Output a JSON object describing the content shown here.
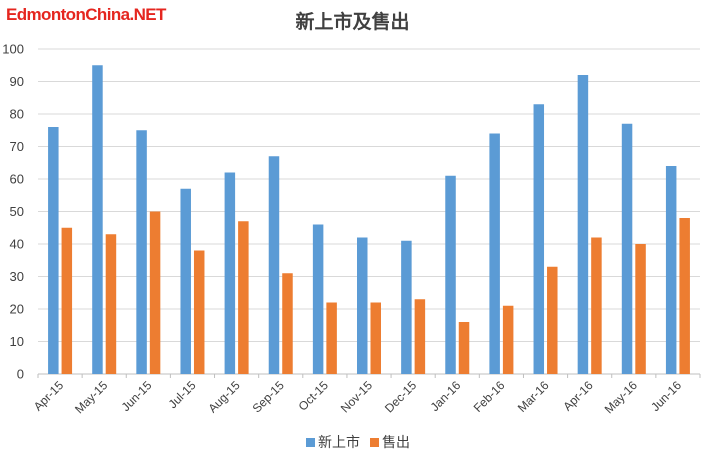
{
  "logo": "EdmontonChina.NET",
  "colors": {
    "series1": "#5b9bd5",
    "series2": "#ed7d31",
    "grid": "#d9d9d9",
    "axis": "#bfbfbf",
    "logo": "#e5261f"
  },
  "chart_data": {
    "type": "bar",
    "title": "新上市及售出",
    "xlabel": "",
    "ylabel": "",
    "ylim": [
      0,
      100
    ],
    "yticks": [
      0,
      10,
      20,
      30,
      40,
      50,
      60,
      70,
      80,
      90,
      100
    ],
    "grid": true,
    "legend_position": "bottom",
    "categories": [
      "Apr-15",
      "May-15",
      "Jun-15",
      "Jul-15",
      "Aug-15",
      "Sep-15",
      "Oct-15",
      "Nov-15",
      "Dec-15",
      "Jan-16",
      "Feb-16",
      "Mar-16",
      "Apr-16",
      "May-16",
      "Jun-16"
    ],
    "series": [
      {
        "name": "新上市",
        "color": "#5b9bd5",
        "values": [
          76,
          95,
          75,
          57,
          62,
          67,
          46,
          42,
          41,
          61,
          74,
          83,
          92,
          77,
          64
        ]
      },
      {
        "name": "售出",
        "color": "#ed7d31",
        "values": [
          45,
          43,
          50,
          38,
          47,
          31,
          22,
          22,
          23,
          16,
          21,
          33,
          42,
          40,
          48
        ]
      }
    ]
  }
}
